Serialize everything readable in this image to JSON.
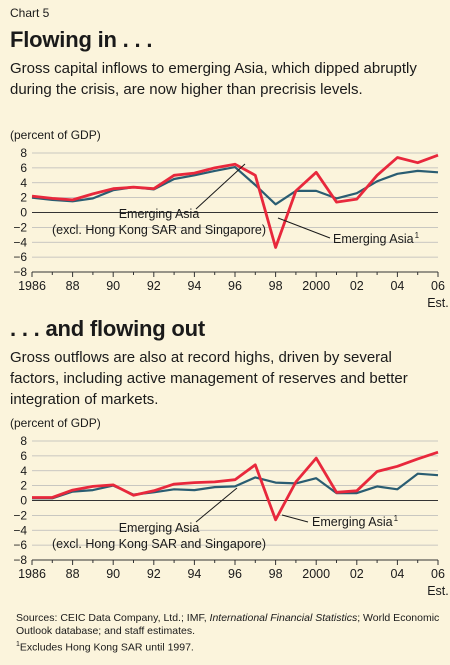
{
  "header": {
    "chart_label": "Chart 5"
  },
  "sources": {
    "prefix": "Sources: CEIC Data Company, Ltd.; IMF, ",
    "italic": "International Financial Statistics",
    "suffix": "; World Economic Outlook database; and staff estimates."
  },
  "footnote": {
    "mark": "1",
    "text": "Excludes Hong Kong SAR until 1997."
  },
  "colors": {
    "emerging_asia": "#e8283c",
    "emerging_asia_excl": "#2a5d72",
    "background": "#fbf4dc"
  },
  "chart_data": [
    {
      "type": "line",
      "title": "Flowing in . . .",
      "subtitle": "Gross capital inflows to emerging Asia, which dipped abruptly during the crisis, are now higher than precrisis levels.",
      "unit_label": "(percent of GDP)",
      "ylim": [
        -8,
        8
      ],
      "yticks": [
        8,
        6,
        4,
        2,
        0,
        -2,
        -4,
        -6,
        -8
      ],
      "xlim": [
        1986,
        2006
      ],
      "xtick_labels": [
        {
          "year": 1986,
          "label": "1986"
        },
        {
          "year": 1988,
          "label": "88"
        },
        {
          "year": 1990,
          "label": "90"
        },
        {
          "year": 1992,
          "label": "92"
        },
        {
          "year": 1994,
          "label": "94"
        },
        {
          "year": 1996,
          "label": "96"
        },
        {
          "year": 1998,
          "label": "98"
        },
        {
          "year": 2000,
          "label": "2000"
        },
        {
          "year": 2002,
          "label": "02"
        },
        {
          "year": 2004,
          "label": "04"
        },
        {
          "year": 2006,
          "label": "06"
        }
      ],
      "x_extra_label": "Est.",
      "x": [
        1986,
        1987,
        1988,
        1989,
        1990,
        1991,
        1992,
        1993,
        1994,
        1995,
        1996,
        1997,
        1998,
        1999,
        2000,
        2001,
        2002,
        2003,
        2004,
        2005,
        2006
      ],
      "series": [
        {
          "name": "Emerging Asia (excl. Hong Kong SAR and Singapore)",
          "values": [
            2.0,
            1.7,
            1.5,
            1.9,
            3.0,
            3.4,
            3.1,
            4.5,
            5.0,
            5.6,
            6.1,
            3.7,
            1.1,
            2.9,
            2.9,
            1.9,
            2.6,
            4.2,
            5.2,
            5.6,
            5.4
          ]
        },
        {
          "name": "Emerging Asia",
          "values": [
            2.2,
            1.9,
            1.7,
            2.5,
            3.2,
            3.4,
            3.2,
            5.0,
            5.3,
            6.0,
            6.5,
            5.0,
            -4.7,
            2.9,
            5.4,
            1.4,
            1.8,
            5.0,
            7.4,
            6.7,
            7.7
          ]
        }
      ],
      "annotations": {
        "excl_line1": "Emerging Asia",
        "excl_line2": "(excl. Hong Kong SAR and Singapore)",
        "ea_label": "Emerging Asia",
        "ea_sup": "1"
      }
    },
    {
      "type": "line",
      "title": ". . . and flowing out",
      "subtitle": "Gross outflows are also at record highs, driven by several factors, including active management of reserves and better integration of markets.",
      "unit_label": "(percent of GDP)",
      "ylim": [
        -8,
        8
      ],
      "yticks": [
        8,
        6,
        4,
        2,
        0,
        -2,
        -4,
        -6,
        -8
      ],
      "xlim": [
        1986,
        2006
      ],
      "xtick_labels": [
        {
          "year": 1986,
          "label": "1986"
        },
        {
          "year": 1988,
          "label": "88"
        },
        {
          "year": 1990,
          "label": "90"
        },
        {
          "year": 1992,
          "label": "92"
        },
        {
          "year": 1994,
          "label": "94"
        },
        {
          "year": 1996,
          "label": "96"
        },
        {
          "year": 1998,
          "label": "98"
        },
        {
          "year": 2000,
          "label": "2000"
        },
        {
          "year": 2002,
          "label": "02"
        },
        {
          "year": 2004,
          "label": "04"
        },
        {
          "year": 2006,
          "label": "06"
        }
      ],
      "x_extra_label": "Est.",
      "x": [
        1986,
        1987,
        1988,
        1989,
        1990,
        1991,
        1992,
        1993,
        1994,
        1995,
        1996,
        1997,
        1998,
        1999,
        2000,
        2001,
        2002,
        2003,
        2004,
        2005,
        2006
      ],
      "series": [
        {
          "name": "Emerging Asia (excl. Hong Kong SAR and Singapore)",
          "values": [
            0.3,
            0.3,
            1.2,
            1.4,
            2.0,
            0.8,
            1.1,
            1.5,
            1.4,
            1.8,
            1.9,
            3.1,
            2.4,
            2.3,
            3.0,
            1.0,
            1.0,
            1.9,
            1.5,
            3.6,
            3.4
          ]
        },
        {
          "name": "Emerging Asia",
          "values": [
            0.4,
            0.4,
            1.4,
            1.9,
            2.1,
            0.7,
            1.3,
            2.2,
            2.4,
            2.5,
            2.8,
            4.8,
            -2.6,
            2.5,
            5.7,
            1.1,
            1.3,
            3.9,
            4.6,
            5.6,
            6.5
          ]
        }
      ],
      "annotations": {
        "excl_line1": "Emerging Asia",
        "excl_line2": "(excl. Hong Kong SAR and Singapore)",
        "ea_label": "Emerging Asia",
        "ea_sup": "1"
      }
    }
  ]
}
